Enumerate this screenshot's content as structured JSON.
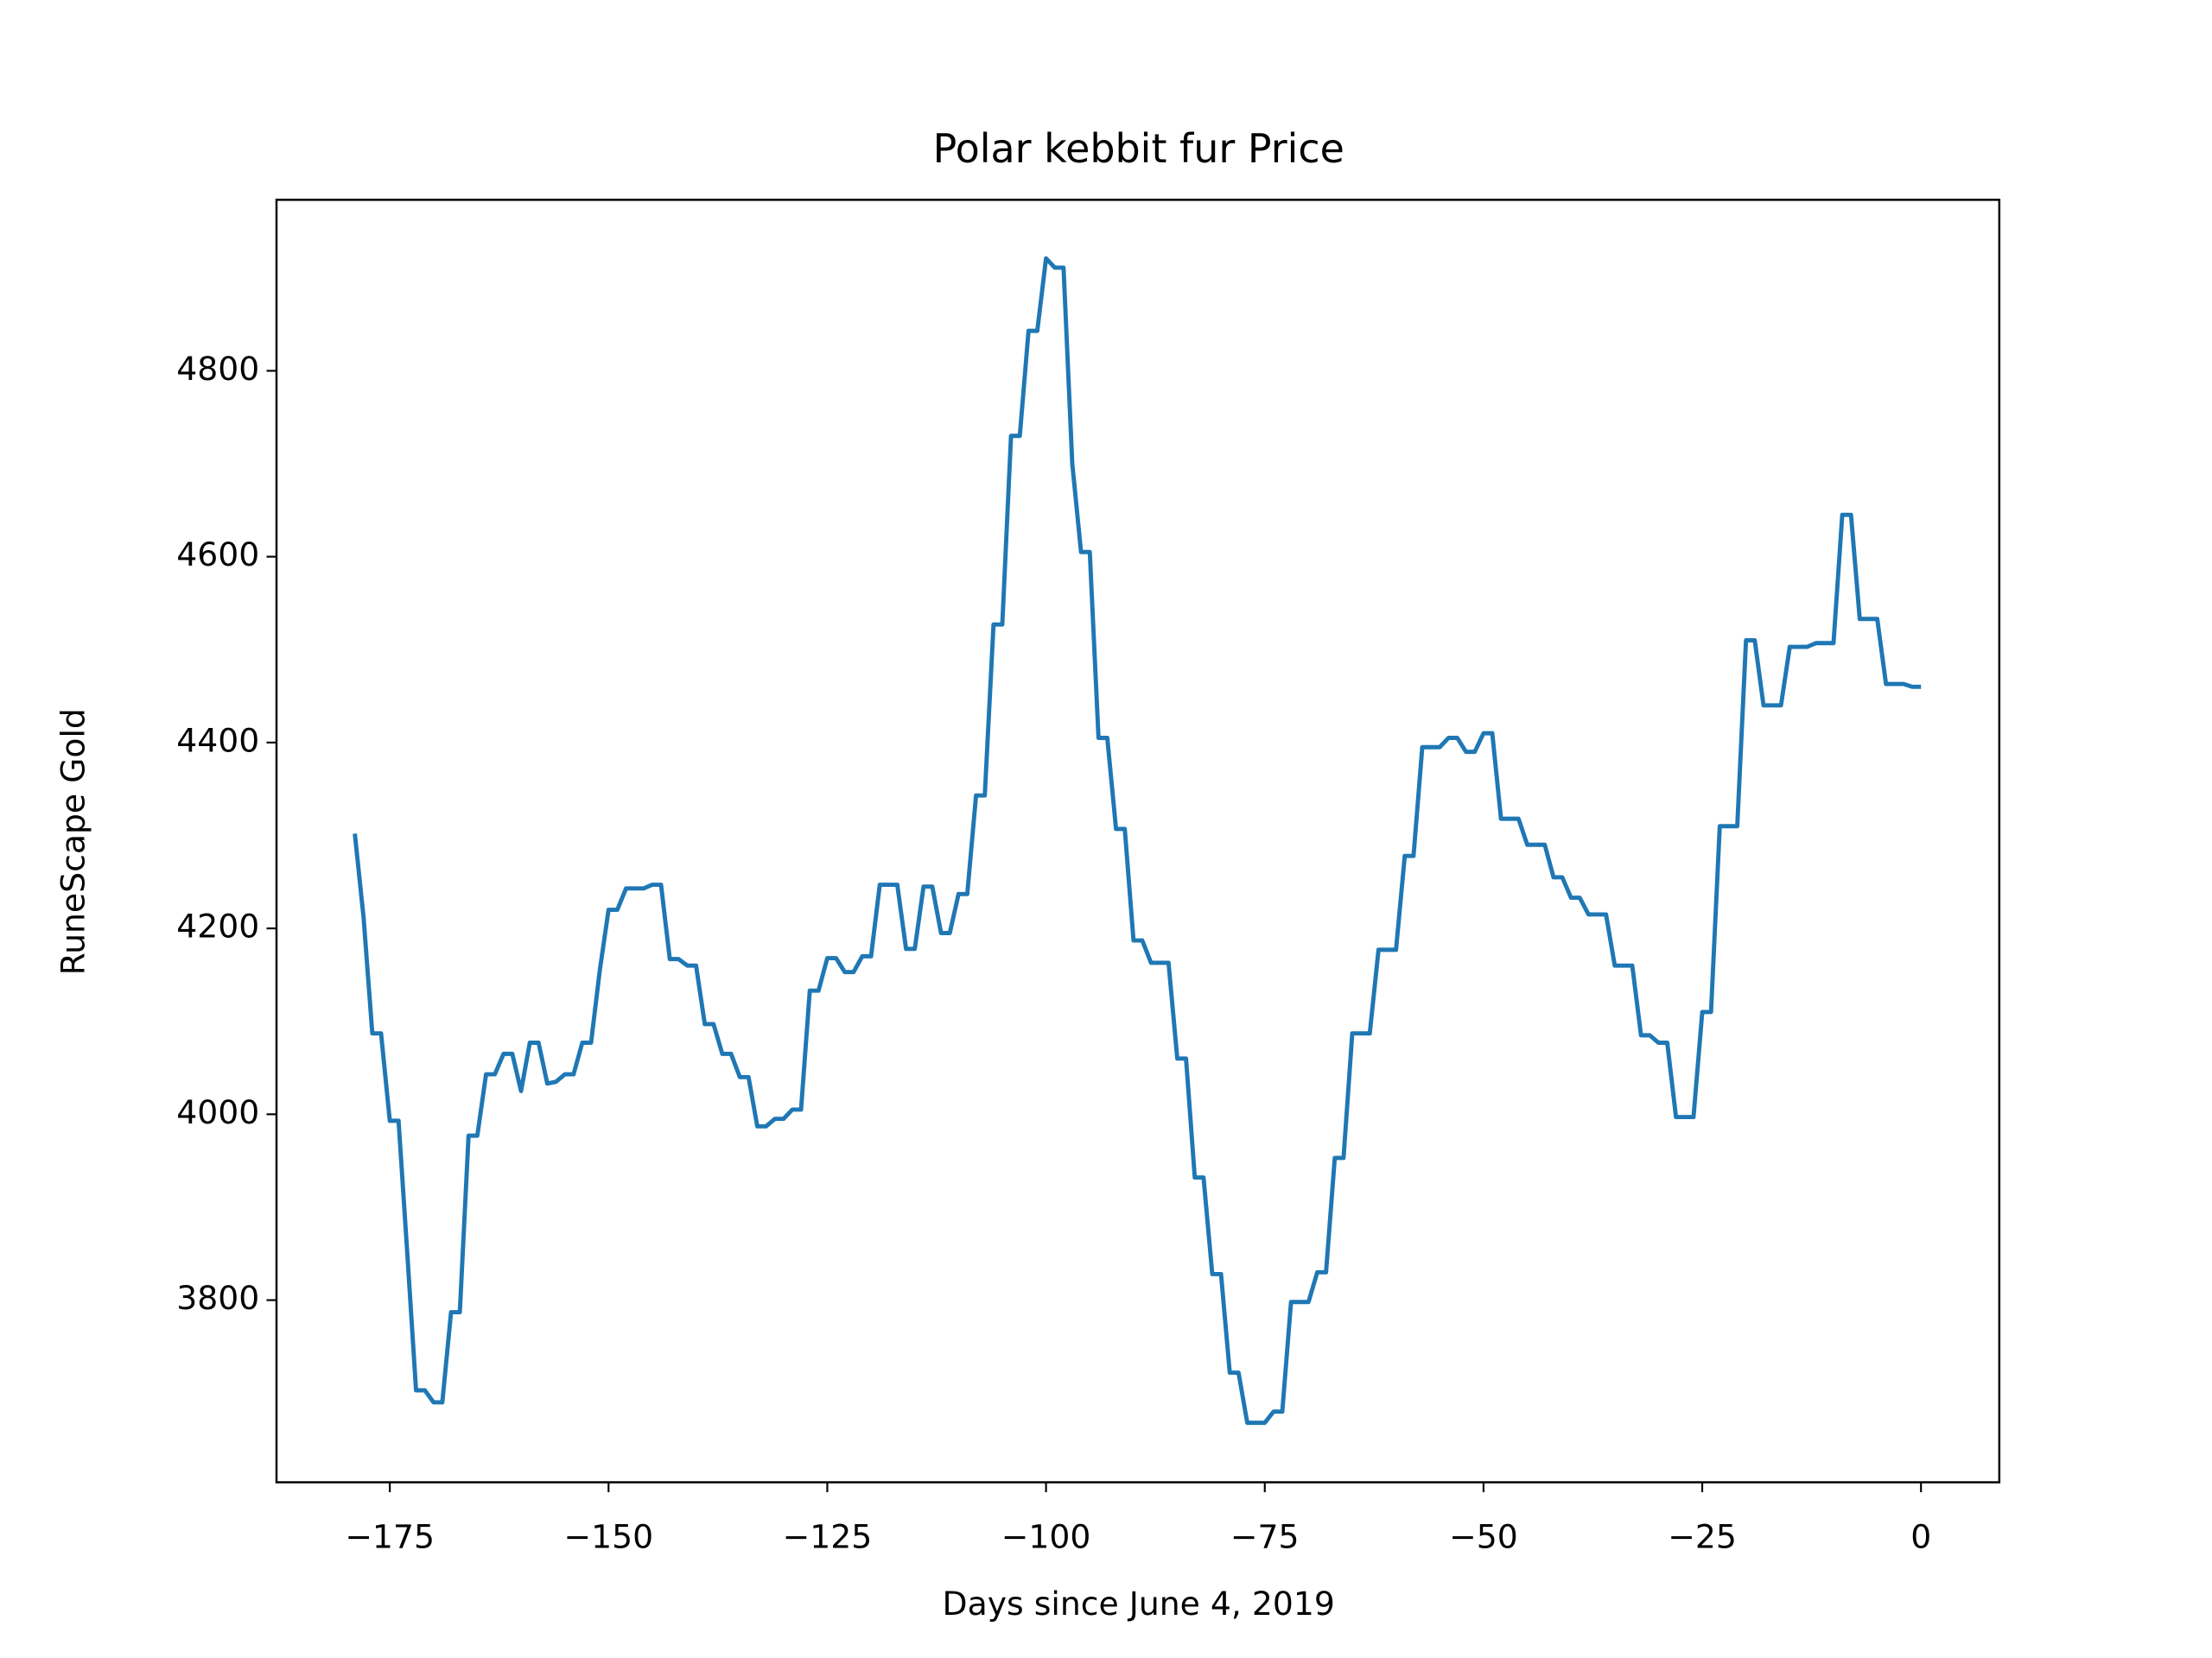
{
  "chart_data": {
    "type": "line",
    "title": "Polar kebbit fur Price",
    "x_label": "Days since June 4, 2019",
    "y_label": "RuneScape Gold",
    "x": [
      -179,
      -178,
      -177,
      -176,
      -175,
      -174,
      -173,
      -172,
      -171,
      -170,
      -169,
      -168,
      -167,
      -166,
      -165,
      -164,
      -163,
      -162,
      -161,
      -160,
      -159,
      -158,
      -157,
      -156,
      -155,
      -154,
      -153,
      -152,
      -151,
      -150,
      -149,
      -148,
      -147,
      -146,
      -145,
      -144,
      -143,
      -142,
      -141,
      -140,
      -139,
      -138,
      -137,
      -136,
      -135,
      -134,
      -133,
      -132,
      -131,
      -130,
      -129,
      -128,
      -127,
      -126,
      -125,
      -124,
      -123,
      -122,
      -121,
      -120,
      -119,
      -118,
      -117,
      -116,
      -115,
      -114,
      -113,
      -112,
      -111,
      -110,
      -109,
      -108,
      -107,
      -106,
      -105,
      -104,
      -103,
      -102,
      -101,
      -100,
      -99,
      -98,
      -97,
      -96,
      -95,
      -94,
      -93,
      -92,
      -91,
      -90,
      -89,
      -88,
      -87,
      -86,
      -85,
      -84,
      -83,
      -82,
      -81,
      -80,
      -79,
      -78,
      -77,
      -76,
      -75,
      -74,
      -73,
      -72,
      -71,
      -70,
      -69,
      -68,
      -67,
      -66,
      -65,
      -64,
      -63,
      -62,
      -61,
      -60,
      -59,
      -58,
      -57,
      -56,
      -55,
      -54,
      -53,
      -52,
      -51,
      -50,
      -49,
      -48,
      -47,
      -46,
      -45,
      -44,
      -43,
      -42,
      -41,
      -40,
      -39,
      -38,
      -37,
      -36,
      -35,
      -34,
      -33,
      -32,
      -31,
      -30,
      -29,
      -28,
      -27,
      -26,
      -25,
      -24,
      -23,
      -22,
      -21,
      -20,
      -19,
      -18,
      -17,
      -16,
      -15,
      -14,
      -13,
      -12,
      -11,
      -10,
      -9,
      -8,
      -7,
      -6,
      -5,
      -4,
      -3,
      -2,
      -1,
      0
    ],
    "series": [
      {
        "name": "Polar kebbit fur",
        "color": "#1f77b4",
        "values": [
          4302,
          4212,
          4087,
          4087,
          3993,
          3993,
          3850,
          3703,
          3703,
          3690,
          3690,
          3787,
          3787,
          3977,
          3977,
          4043,
          4043,
          4065,
          4065,
          4025,
          4077,
          4077,
          4033,
          4035,
          4043,
          4043,
          4077,
          4077,
          4155,
          4220,
          4220,
          4243,
          4243,
          4243,
          4247,
          4247,
          4167,
          4167,
          4160,
          4160,
          4097,
          4097,
          4065,
          4065,
          4040,
          4040,
          3987,
          3987,
          3995,
          3995,
          4005,
          4005,
          4133,
          4133,
          4168,
          4168,
          4153,
          4153,
          4170,
          4170,
          4247,
          4247,
          4247,
          4178,
          4178,
          4245,
          4245,
          4195,
          4195,
          4237,
          4237,
          4343,
          4343,
          4527,
          4527,
          4730,
          4730,
          4843,
          4843,
          4921,
          4911,
          4911,
          4700,
          4605,
          4605,
          4405,
          4405,
          4307,
          4307,
          4187,
          4187,
          4163,
          4163,
          4163,
          4060,
          4060,
          3932,
          3932,
          3828,
          3828,
          3722,
          3722,
          3668,
          3668,
          3668,
          3680,
          3680,
          3798,
          3798,
          3798,
          3830,
          3830,
          3953,
          3953,
          4087,
          4087,
          4087,
          4177,
          4177,
          4177,
          4278,
          4278,
          4395,
          4395,
          4395,
          4405,
          4405,
          4390,
          4390,
          4410,
          4410,
          4318,
          4318,
          4318,
          4290,
          4290,
          4290,
          4255,
          4255,
          4233,
          4233,
          4215,
          4215,
          4215,
          4160,
          4160,
          4160,
          4085,
          4085,
          4077,
          4077,
          3997,
          3997,
          3997,
          4110,
          4110,
          4310,
          4310,
          4310,
          4510,
          4510,
          4440,
          4440,
          4440,
          4503,
          4503,
          4503,
          4507,
          4507,
          4507,
          4645,
          4645,
          4533,
          4533,
          4533,
          4463,
          4463,
          4463,
          4460,
          4460
        ]
      }
    ],
    "xlim": [
      -187.95,
      8.95
    ],
    "xticks": [
      {
        "value": -175,
        "label": "−175"
      },
      {
        "value": -150,
        "label": "−150"
      },
      {
        "value": -125,
        "label": "−125"
      },
      {
        "value": -100,
        "label": "−100"
      },
      {
        "value": -75,
        "label": "−75"
      },
      {
        "value": -50,
        "label": "−50"
      },
      {
        "value": -25,
        "label": "−25"
      },
      0
    ],
    "ylim": [
      3604,
      4984
    ],
    "yticks": [
      3800,
      4000,
      4200,
      4400,
      4600,
      4800
    ],
    "grid": false
  }
}
